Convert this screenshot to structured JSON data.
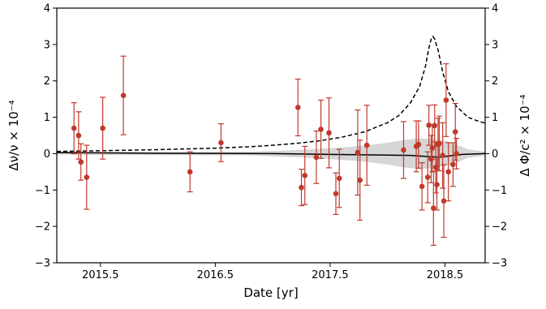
{
  "chart_data": {
    "type": "scatter",
    "xlabel": "Date [yr]",
    "ylabel_left": "Δν/ν × 10⁻⁴",
    "ylabel_right": "Δ Φ/c² × 10⁻⁴",
    "xlim": [
      2015.12,
      2018.85
    ],
    "ylim": [
      -3,
      4
    ],
    "x_ticks": [
      2015.5,
      2016.5,
      2017.5,
      2018.5
    ],
    "x_tick_labels": [
      "2015.5",
      "2016.5",
      "2017.5",
      "2018.5"
    ],
    "y_ticks": [
      -3,
      -2,
      -1,
      0,
      1,
      2,
      3,
      4
    ],
    "y_tick_labels": [
      "−3",
      "−2",
      "−1",
      "0",
      "1",
      "2",
      "3",
      "4"
    ],
    "grid": false,
    "legend": false,
    "colors": {
      "points": "#c0392b",
      "model_line": "#000000",
      "band": "#c8c8c8"
    },
    "series": [
      {
        "kind": "errorbar",
        "points": [
          {
            "x": 2015.27,
            "y": 0.7,
            "err": 0.7
          },
          {
            "x": 2015.31,
            "y": 0.5,
            "err": 0.65
          },
          {
            "x": 2015.33,
            "y": -0.23,
            "err": 0.5
          },
          {
            "x": 2015.38,
            "y": -0.65,
            "err": 0.88
          },
          {
            "x": 2015.52,
            "y": 0.7,
            "err": 0.85
          },
          {
            "x": 2015.7,
            "y": 1.6,
            "err": 1.08
          },
          {
            "x": 2016.28,
            "y": -0.5,
            "err": 0.55
          },
          {
            "x": 2016.55,
            "y": 0.3,
            "err": 0.52
          },
          {
            "x": 2017.22,
            "y": 1.27,
            "err": 0.78
          },
          {
            "x": 2017.25,
            "y": -0.93,
            "err": 0.5
          },
          {
            "x": 2017.28,
            "y": -0.6,
            "err": 0.8
          },
          {
            "x": 2017.38,
            "y": -0.1,
            "err": 0.72
          },
          {
            "x": 2017.42,
            "y": 0.67,
            "err": 0.8
          },
          {
            "x": 2017.49,
            "y": 0.57,
            "err": 0.96
          },
          {
            "x": 2017.55,
            "y": -1.1,
            "err": 0.57
          },
          {
            "x": 2017.58,
            "y": -0.68,
            "err": 0.8
          },
          {
            "x": 2017.74,
            "y": 0.03,
            "err": 1.17
          },
          {
            "x": 2017.76,
            "y": -0.73,
            "err": 1.1
          },
          {
            "x": 2017.82,
            "y": 0.23,
            "err": 1.1
          },
          {
            "x": 2018.14,
            "y": 0.1,
            "err": 0.78
          },
          {
            "x": 2018.25,
            "y": 0.2,
            "err": 0.7
          },
          {
            "x": 2018.27,
            "y": 0.25,
            "err": 0.65
          },
          {
            "x": 2018.3,
            "y": -0.9,
            "err": 0.65
          },
          {
            "x": 2018.35,
            "y": -0.65,
            "err": 0.7
          },
          {
            "x": 2018.36,
            "y": 0.78,
            "err": 0.55
          },
          {
            "x": 2018.38,
            "y": -0.15,
            "err": 0.65
          },
          {
            "x": 2018.39,
            "y": 0.15,
            "err": 0.65
          },
          {
            "x": 2018.4,
            "y": -1.5,
            "err": 1.02
          },
          {
            "x": 2018.41,
            "y": 0.77,
            "err": 0.57
          },
          {
            "x": 2018.42,
            "y": -0.38,
            "err": 0.7
          },
          {
            "x": 2018.43,
            "y": -0.85,
            "err": 0.7
          },
          {
            "x": 2018.44,
            "y": 0.25,
            "err": 0.72
          },
          {
            "x": 2018.45,
            "y": 0.28,
            "err": 0.75
          },
          {
            "x": 2018.48,
            "y": -0.05,
            "err": 0.9
          },
          {
            "x": 2018.49,
            "y": -1.3,
            "err": 1.0
          },
          {
            "x": 2018.51,
            "y": 1.47,
            "err": 1.0
          },
          {
            "x": 2018.53,
            "y": -0.5,
            "err": 0.8
          },
          {
            "x": 2018.57,
            "y": -0.3,
            "err": 0.6
          },
          {
            "x": 2018.59,
            "y": 0.6,
            "err": 0.78
          },
          {
            "x": 2018.6,
            "y": 0.0,
            "err": 0.42
          }
        ]
      },
      {
        "kind": "dashed_curve",
        "points": [
          [
            2015.12,
            0.06
          ],
          [
            2015.5,
            0.08
          ],
          [
            2016.0,
            0.11
          ],
          [
            2016.5,
            0.15
          ],
          [
            2016.8,
            0.19
          ],
          [
            2017.0,
            0.23
          ],
          [
            2017.2,
            0.28
          ],
          [
            2017.4,
            0.35
          ],
          [
            2017.6,
            0.45
          ],
          [
            2017.8,
            0.6
          ],
          [
            2018.0,
            0.85
          ],
          [
            2018.1,
            1.05
          ],
          [
            2018.2,
            1.4
          ],
          [
            2018.28,
            1.85
          ],
          [
            2018.33,
            2.4
          ],
          [
            2018.36,
            2.9
          ],
          [
            2018.38,
            3.15
          ],
          [
            2018.395,
            3.22
          ],
          [
            2018.41,
            3.15
          ],
          [
            2018.44,
            2.85
          ],
          [
            2018.48,
            2.25
          ],
          [
            2018.53,
            1.7
          ],
          [
            2018.6,
            1.3
          ],
          [
            2018.7,
            1.0
          ],
          [
            2018.8,
            0.88
          ],
          [
            2018.85,
            0.84
          ]
        ]
      },
      {
        "kind": "solid_line",
        "points": [
          [
            2015.12,
            0.03
          ],
          [
            2016.0,
            0.01
          ],
          [
            2017.0,
            0.0
          ],
          [
            2017.5,
            -0.02
          ],
          [
            2018.0,
            -0.04
          ],
          [
            2018.2,
            -0.05
          ],
          [
            2018.35,
            -0.08
          ],
          [
            2018.45,
            -0.1
          ],
          [
            2018.55,
            -0.06
          ],
          [
            2018.65,
            -0.02
          ],
          [
            2018.85,
            0.0
          ]
        ]
      },
      {
        "kind": "band",
        "upper": [
          [
            2015.12,
            0.05
          ],
          [
            2016.0,
            0.04
          ],
          [
            2016.8,
            0.05
          ],
          [
            2017.2,
            0.1
          ],
          [
            2017.5,
            0.15
          ],
          [
            2017.8,
            0.22
          ],
          [
            2018.0,
            0.3
          ],
          [
            2018.15,
            0.38
          ],
          [
            2018.3,
            0.42
          ],
          [
            2018.4,
            0.4
          ],
          [
            2018.5,
            0.35
          ],
          [
            2018.6,
            0.25
          ],
          [
            2018.7,
            0.12
          ],
          [
            2018.85,
            0.05
          ]
        ],
        "lower": [
          [
            2015.12,
            -0.03
          ],
          [
            2016.0,
            -0.04
          ],
          [
            2016.8,
            -0.05
          ],
          [
            2017.2,
            -0.1
          ],
          [
            2017.5,
            -0.15
          ],
          [
            2017.8,
            -0.22
          ],
          [
            2018.0,
            -0.3
          ],
          [
            2018.15,
            -0.38
          ],
          [
            2018.3,
            -0.42
          ],
          [
            2018.4,
            -0.4
          ],
          [
            2018.5,
            -0.35
          ],
          [
            2018.6,
            -0.25
          ],
          [
            2018.7,
            -0.12
          ],
          [
            2018.85,
            -0.05
          ]
        ]
      }
    ]
  }
}
